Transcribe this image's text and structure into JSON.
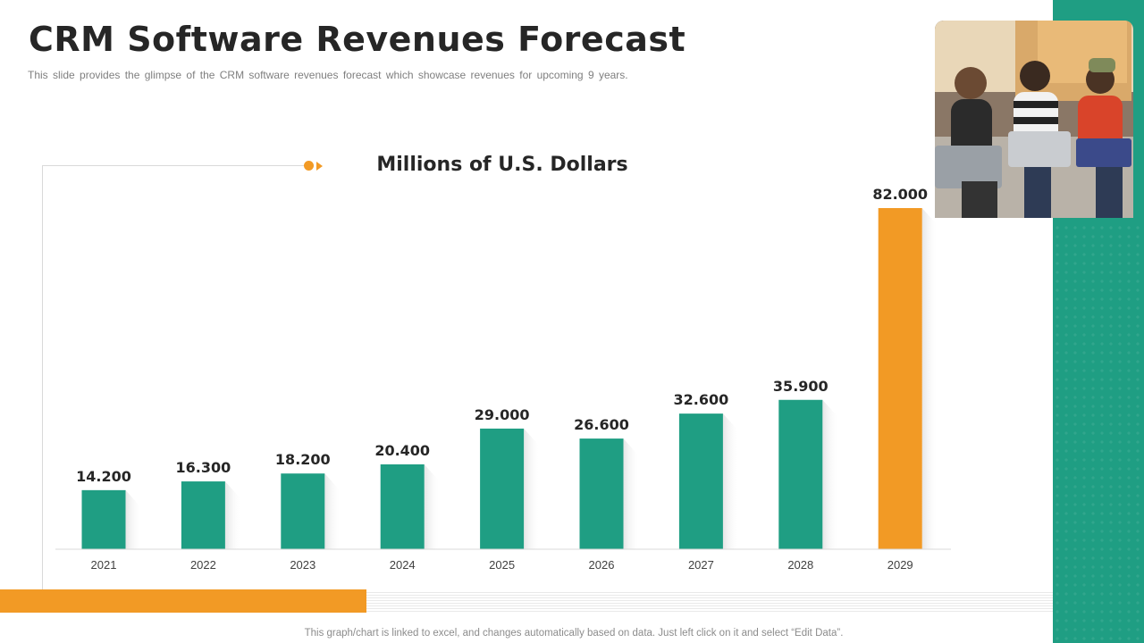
{
  "slide": {
    "title": "CRM Software Revenues Forecast",
    "subtitle": "This slide provides  the glimpse of the CRM software  revenues  forecast which showcase revenues  for upcoming  9 years.",
    "footnote": "This graph/chart  is linked to excel, and changes automatically  based on data.  Just left click on it and select “Edit Data”."
  },
  "colors": {
    "teal": "#1f9e83",
    "orange": "#f29a25",
    "title_text": "#262626"
  },
  "chart_data": {
    "type": "bar",
    "title": "Millions of U.S. Dollars",
    "categories": [
      "2021",
      "2022",
      "2023",
      "2024",
      "2025",
      "2026",
      "2027",
      "2028",
      "2029"
    ],
    "values": [
      14.2,
      16.3,
      18.2,
      20.4,
      29.0,
      26.6,
      32.6,
      35.9,
      82.0
    ],
    "value_labels": [
      "14.200",
      "16.300",
      "18.200",
      "20.400",
      "29.000",
      "26.600",
      "32.600",
      "35.900",
      "82.000"
    ],
    "bar_colors": [
      "#1f9e83",
      "#1f9e83",
      "#1f9e83",
      "#1f9e83",
      "#1f9e83",
      "#1f9e83",
      "#1f9e83",
      "#1f9e83",
      "#f29a25"
    ],
    "ylim": [
      0,
      82
    ],
    "xlabel": "",
    "ylabel": "",
    "grid": false,
    "legend": "none"
  }
}
